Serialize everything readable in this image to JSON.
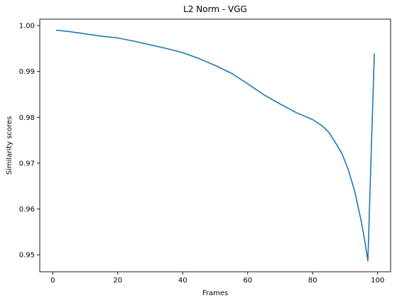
{
  "chart_data": {
    "type": "line",
    "title": "L2 Norm - VGG",
    "xlabel": "Frames",
    "ylabel": "Similarity scores",
    "xlim": [
      -4,
      104
    ],
    "ylim": [
      0.9463,
      1.0014
    ],
    "xticks": [
      0,
      20,
      40,
      60,
      80,
      100
    ],
    "yticks": [
      0.95,
      0.96,
      0.97,
      0.98,
      0.99,
      1.0
    ],
    "ytick_labels": [
      "0.95",
      "0.96",
      "0.97",
      "0.98",
      "0.99",
      "1.00"
    ],
    "grid": false,
    "legend": false,
    "series": [
      {
        "color": "#1f77b4",
        "x": [
          1,
          5,
          10,
          15,
          20,
          25,
          30,
          35,
          40,
          45,
          50,
          55,
          60,
          65,
          70,
          75,
          80,
          83,
          85,
          87,
          89,
          91,
          93,
          95,
          96,
          97,
          98,
          99
        ],
        "y": [
          0.999,
          0.9987,
          0.9982,
          0.9977,
          0.9973,
          0.9966,
          0.9958,
          0.995,
          0.9941,
          0.9928,
          0.9913,
          0.9896,
          0.9873,
          0.9849,
          0.9829,
          0.981,
          0.9795,
          0.9781,
          0.9767,
          0.9745,
          0.9721,
          0.9685,
          0.9637,
          0.9572,
          0.9532,
          0.9487,
          0.9717,
          0.9939
        ]
      }
    ]
  }
}
